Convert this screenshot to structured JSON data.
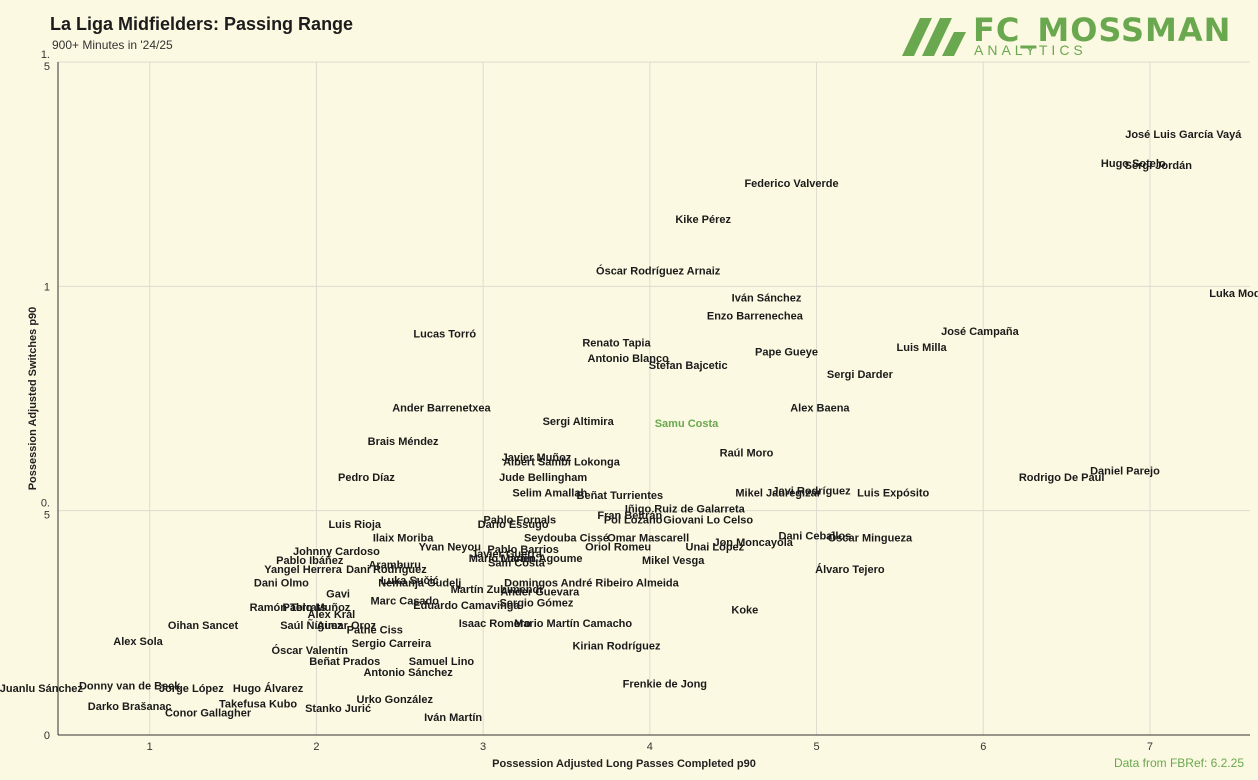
{
  "header": {
    "title": "La Liga Midfielders: Passing Range",
    "subtitle": "900+ Minutes in '24/25"
  },
  "logo": {
    "name": "FC_MOSSMAN",
    "sub": "ANALYTICS"
  },
  "source": "Data from FBRef: 6.2.25",
  "colors": {
    "background": "#fcf9e2",
    "grid": "#dddcd0",
    "highlight": "#6aa84f",
    "text": "#1a1a1a"
  },
  "chart_data": {
    "type": "scatter",
    "title": "La Liga Midfielders: Passing Range",
    "subtitle": "900+ Minutes in '24/25",
    "xlabel": "Possession Adjusted Long Passes Completed p90",
    "ylabel": "Possession Adjusted Switches p90",
    "xlim": [
      0.45,
      7.6
    ],
    "ylim": [
      0,
      1.5
    ],
    "grid": true,
    "x_ticks": [
      "1",
      "2",
      "3",
      "4",
      "5",
      "6",
      "7"
    ],
    "y_ticks": [
      {
        "value": 0,
        "label": "0"
      },
      {
        "value": 0.5,
        "label": "0.\n5"
      },
      {
        "value": 1,
        "label": "1"
      },
      {
        "value": 1.5,
        "label": "1.\n5"
      }
    ],
    "highlight": "Samu Costa",
    "points": [
      {
        "name": "José Luis García Vayá",
        "x": 7.2,
        "y": 1.34
      },
      {
        "name": "Hugo Sotelo",
        "x": 6.9,
        "y": 1.275
      },
      {
        "name": "Sergi Jordán",
        "x": 7.05,
        "y": 1.27
      },
      {
        "name": "Federico Valverde",
        "x": 4.85,
        "y": 1.23
      },
      {
        "name": "Kike Pérez",
        "x": 4.32,
        "y": 1.15
      },
      {
        "name": "Óscar Rodríguez Arnaiz",
        "x": 4.05,
        "y": 1.035
      },
      {
        "name": "Iván Sánchez",
        "x": 4.7,
        "y": 0.975
      },
      {
        "name": "Luka Modrić",
        "x": 7.55,
        "y": 0.985
      },
      {
        "name": "Enzo Barrenechea",
        "x": 4.63,
        "y": 0.935
      },
      {
        "name": "José Campaña",
        "x": 5.98,
        "y": 0.9
      },
      {
        "name": "Lucas Torró",
        "x": 2.77,
        "y": 0.895
      },
      {
        "name": "Renato Tapia",
        "x": 3.8,
        "y": 0.875
      },
      {
        "name": "Luis Milla",
        "x": 5.63,
        "y": 0.865
      },
      {
        "name": "Antonio Blanco",
        "x": 3.87,
        "y": 0.84
      },
      {
        "name": "Pape Gueye",
        "x": 4.82,
        "y": 0.855
      },
      {
        "name": "Stefan Bajcetic",
        "x": 4.23,
        "y": 0.825
      },
      {
        "name": "Sergi Darder",
        "x": 5.26,
        "y": 0.805
      },
      {
        "name": "Ander Barrenetxea",
        "x": 2.75,
        "y": 0.73
      },
      {
        "name": "Alex Baena",
        "x": 5.02,
        "y": 0.73
      },
      {
        "name": "Sergi Altimira",
        "x": 3.57,
        "y": 0.7
      },
      {
        "name": "Samu Costa",
        "x": 4.22,
        "y": 0.695
      },
      {
        "name": "Brais Méndez",
        "x": 2.52,
        "y": 0.655
      },
      {
        "name": "Raúl Moro",
        "x": 4.58,
        "y": 0.63
      },
      {
        "name": "Javier Muñoz",
        "x": 3.32,
        "y": 0.62
      },
      {
        "name": "Albert Sambi Lokonga",
        "x": 3.47,
        "y": 0.61
      },
      {
        "name": "Daniel Parejo",
        "x": 6.85,
        "y": 0.59
      },
      {
        "name": "Rodrigo De Paul",
        "x": 6.47,
        "y": 0.575
      },
      {
        "name": "Pedro Díaz",
        "x": 2.3,
        "y": 0.575
      },
      {
        "name": "Jude Bellingham",
        "x": 3.36,
        "y": 0.575
      },
      {
        "name": "Mikel Jauregizar",
        "x": 4.77,
        "y": 0.54
      },
      {
        "name": "Javi Rodríguez",
        "x": 4.97,
        "y": 0.545
      },
      {
        "name": "Luis Expósito",
        "x": 5.46,
        "y": 0.54
      },
      {
        "name": "Selim Amallah",
        "x": 3.4,
        "y": 0.54
      },
      {
        "name": "Beñat Turrientes",
        "x": 3.82,
        "y": 0.535
      },
      {
        "name": "Iñigo Ruiz de Galarreta",
        "x": 4.21,
        "y": 0.505
      },
      {
        "name": "Fran Beltrán",
        "x": 3.88,
        "y": 0.49
      },
      {
        "name": "Pablo Fornals",
        "x": 3.22,
        "y": 0.48
      },
      {
        "name": "Pol Lozano",
        "x": 3.9,
        "y": 0.48
      },
      {
        "name": "Giovani Lo Celso",
        "x": 4.35,
        "y": 0.48
      },
      {
        "name": "Luis Rioja",
        "x": 2.23,
        "y": 0.47
      },
      {
        "name": "Darío Essugo",
        "x": 3.18,
        "y": 0.47
      },
      {
        "name": "Dani Ceballos",
        "x": 4.99,
        "y": 0.445
      },
      {
        "name": "Óscar Mingueza",
        "x": 5.32,
        "y": 0.44
      },
      {
        "name": "Seydouba Cissé",
        "x": 3.5,
        "y": 0.44
      },
      {
        "name": "Omar Mascarell",
        "x": 3.99,
        "y": 0.44
      },
      {
        "name": "Ilaix Moriba",
        "x": 2.52,
        "y": 0.44
      },
      {
        "name": "Jon Moncayola",
        "x": 4.62,
        "y": 0.43
      },
      {
        "name": "Unai López",
        "x": 4.39,
        "y": 0.42
      },
      {
        "name": "Oriol Romeu",
        "x": 3.81,
        "y": 0.42
      },
      {
        "name": "Yvan Neyou",
        "x": 2.8,
        "y": 0.42
      },
      {
        "name": "Pablo Barrios",
        "x": 3.24,
        "y": 0.415
      },
      {
        "name": "Johnny Cardoso",
        "x": 2.12,
        "y": 0.41
      },
      {
        "name": "Javier Guerra",
        "x": 3.14,
        "y": 0.405
      },
      {
        "name": "Mario Martín",
        "x": 3.11,
        "y": 0.395
      },
      {
        "name": "Lucien Agoume",
        "x": 3.35,
        "y": 0.395
      },
      {
        "name": "Sam Costa",
        "x": 3.2,
        "y": 0.385
      },
      {
        "name": "Mikel Vesga",
        "x": 4.14,
        "y": 0.39
      },
      {
        "name": "Pablo Ibáñez",
        "x": 1.96,
        "y": 0.39
      },
      {
        "name": "Álvaro Tejero",
        "x": 5.2,
        "y": 0.37
      },
      {
        "name": "Aramburu",
        "x": 2.47,
        "y": 0.38
      },
      {
        "name": "Yangel Herrera",
        "x": 1.92,
        "y": 0.37
      },
      {
        "name": "Dani Rodríguez",
        "x": 2.42,
        "y": 0.37
      },
      {
        "name": "Dani Olmo",
        "x": 1.79,
        "y": 0.34
      },
      {
        "name": "Luka Sučić",
        "x": 2.56,
        "y": 0.345
      },
      {
        "name": "Nemanja Gudelj",
        "x": 2.62,
        "y": 0.34
      },
      {
        "name": "Domingos André Ribeiro Almeida",
        "x": 3.65,
        "y": 0.34
      },
      {
        "name": "Martín Zubimendi",
        "x": 3.08,
        "y": 0.325
      },
      {
        "name": "Ander Guevara",
        "x": 3.34,
        "y": 0.32
      },
      {
        "name": "Gavi",
        "x": 2.13,
        "y": 0.315
      },
      {
        "name": "Marc Casado",
        "x": 2.53,
        "y": 0.3
      },
      {
        "name": "Eduardo Camavinga",
        "x": 2.9,
        "y": 0.29
      },
      {
        "name": "Sergio Gómez",
        "x": 3.32,
        "y": 0.295
      },
      {
        "name": "Koke",
        "x": 4.57,
        "y": 0.28
      },
      {
        "name": "Ramón Terrats",
        "x": 1.83,
        "y": 0.285
      },
      {
        "name": "Pablo Muñoz",
        "x": 2.0,
        "y": 0.285
      },
      {
        "name": "Alex Král",
        "x": 2.09,
        "y": 0.27
      },
      {
        "name": "Isaac Romero",
        "x": 3.07,
        "y": 0.25
      },
      {
        "name": "Mario Martín Camacho",
        "x": 3.54,
        "y": 0.25
      },
      {
        "name": "Oihan Sancet",
        "x": 1.32,
        "y": 0.245
      },
      {
        "name": "Saúl Ñíguez",
        "x": 1.97,
        "y": 0.245
      },
      {
        "name": "Aimar Oroz",
        "x": 2.18,
        "y": 0.245
      },
      {
        "name": "Pathé Ciss",
        "x": 2.35,
        "y": 0.235
      },
      {
        "name": "Alex Sola",
        "x": 0.93,
        "y": 0.21
      },
      {
        "name": "Sergio Carreira",
        "x": 2.45,
        "y": 0.205
      },
      {
        "name": "Kirian Rodríguez",
        "x": 3.8,
        "y": 0.2
      },
      {
        "name": "Óscar Valentín",
        "x": 1.96,
        "y": 0.19
      },
      {
        "name": "Beñat Prados",
        "x": 2.17,
        "y": 0.165
      },
      {
        "name": "Samuel Lino",
        "x": 2.75,
        "y": 0.165
      },
      {
        "name": "Antonio Sánchez",
        "x": 2.55,
        "y": 0.14
      },
      {
        "name": "Frenkie de Jong",
        "x": 4.09,
        "y": 0.115
      },
      {
        "name": "Juanlu Sánchez",
        "x": 0.35,
        "y": 0.105
      },
      {
        "name": "Donny van de Beek",
        "x": 0.88,
        "y": 0.11
      },
      {
        "name": "Jorge López",
        "x": 1.25,
        "y": 0.105
      },
      {
        "name": "Hugo Álvarez",
        "x": 1.71,
        "y": 0.105
      },
      {
        "name": "Urko González",
        "x": 2.47,
        "y": 0.08
      },
      {
        "name": "Darko Brašanac",
        "x": 0.88,
        "y": 0.065
      },
      {
        "name": "Takefusa Kubo",
        "x": 1.65,
        "y": 0.07
      },
      {
        "name": "Stanko Jurić",
        "x": 2.13,
        "y": 0.06
      },
      {
        "name": "Conor Gallagher",
        "x": 1.35,
        "y": 0.05
      },
      {
        "name": "Iván Martín",
        "x": 2.82,
        "y": 0.04
      }
    ]
  }
}
